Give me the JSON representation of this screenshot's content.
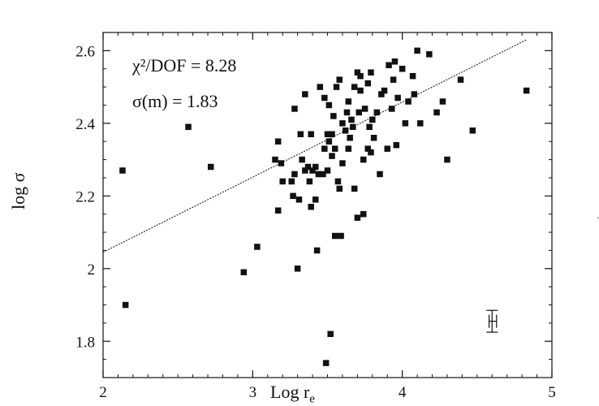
{
  "chart_data": {
    "type": "scatter",
    "xlabel": "Log r",
    "xlabel_sub": "e",
    "ylabel": "log σ",
    "xlim": [
      2,
      5
    ],
    "ylim": [
      1.7,
      2.65
    ],
    "x_ticks": [
      2,
      3,
      4,
      5
    ],
    "x_tick_labels": [
      "2",
      "3",
      "4",
      "5"
    ],
    "y_ticks": [
      1.8,
      2.0,
      2.2,
      2.4,
      2.6
    ],
    "y_tick_labels": [
      "1.8",
      "2",
      "2.2",
      "2.4",
      "2.6"
    ],
    "grid": false,
    "annotations": {
      "chi2": "χ²/DOF = 8.28",
      "sigma_m": "σ(m) = 1.83"
    },
    "fit_line": {
      "x": [
        2.0,
        4.83
      ],
      "y": [
        2.045,
        2.63
      ]
    },
    "error_bar": {
      "x": 4.6,
      "y": 1.855,
      "y_low": 1.825,
      "y_high": 1.885,
      "x_low": 4.58,
      "x_high": 4.63
    },
    "points": [
      {
        "x": 2.13,
        "y": 2.27
      },
      {
        "x": 2.15,
        "y": 1.9
      },
      {
        "x": 2.57,
        "y": 2.39
      },
      {
        "x": 2.72,
        "y": 2.28
      },
      {
        "x": 2.94,
        "y": 1.99
      },
      {
        "x": 3.03,
        "y": 2.06
      },
      {
        "x": 3.15,
        "y": 2.3
      },
      {
        "x": 3.17,
        "y": 2.16
      },
      {
        "x": 3.17,
        "y": 2.35
      },
      {
        "x": 3.19,
        "y": 2.29
      },
      {
        "x": 3.2,
        "y": 2.24
      },
      {
        "x": 3.26,
        "y": 2.24
      },
      {
        "x": 3.27,
        "y": 2.2
      },
      {
        "x": 3.28,
        "y": 2.26
      },
      {
        "x": 3.28,
        "y": 2.44
      },
      {
        "x": 3.3,
        "y": 2.0
      },
      {
        "x": 3.31,
        "y": 2.19
      },
      {
        "x": 3.32,
        "y": 2.37
      },
      {
        "x": 3.33,
        "y": 2.3
      },
      {
        "x": 3.35,
        "y": 2.27
      },
      {
        "x": 3.35,
        "y": 2.48
      },
      {
        "x": 3.37,
        "y": 2.28
      },
      {
        "x": 3.38,
        "y": 2.24
      },
      {
        "x": 3.39,
        "y": 2.17
      },
      {
        "x": 3.39,
        "y": 2.37
      },
      {
        "x": 3.4,
        "y": 2.27
      },
      {
        "x": 3.42,
        "y": 2.19
      },
      {
        "x": 3.42,
        "y": 2.28
      },
      {
        "x": 3.43,
        "y": 2.05
      },
      {
        "x": 3.44,
        "y": 2.26
      },
      {
        "x": 3.45,
        "y": 2.5
      },
      {
        "x": 3.47,
        "y": 2.26
      },
      {
        "x": 3.48,
        "y": 2.33
      },
      {
        "x": 3.48,
        "y": 2.47
      },
      {
        "x": 3.49,
        "y": 1.74
      },
      {
        "x": 3.5,
        "y": 2.27
      },
      {
        "x": 3.5,
        "y": 2.37
      },
      {
        "x": 3.51,
        "y": 2.35
      },
      {
        "x": 3.51,
        "y": 2.45
      },
      {
        "x": 3.52,
        "y": 1.82
      },
      {
        "x": 3.53,
        "y": 2.31
      },
      {
        "x": 3.53,
        "y": 2.37
      },
      {
        "x": 3.54,
        "y": 2.42
      },
      {
        "x": 3.55,
        "y": 2.09
      },
      {
        "x": 3.55,
        "y": 2.33
      },
      {
        "x": 3.56,
        "y": 2.5
      },
      {
        "x": 3.57,
        "y": 2.24
      },
      {
        "x": 3.58,
        "y": 2.22
      },
      {
        "x": 3.58,
        "y": 2.52
      },
      {
        "x": 3.59,
        "y": 2.09
      },
      {
        "x": 3.6,
        "y": 2.29
      },
      {
        "x": 3.6,
        "y": 2.4
      },
      {
        "x": 3.62,
        "y": 2.38
      },
      {
        "x": 3.63,
        "y": 2.43
      },
      {
        "x": 3.64,
        "y": 2.33
      },
      {
        "x": 3.64,
        "y": 2.46
      },
      {
        "x": 3.65,
        "y": 2.36
      },
      {
        "x": 3.66,
        "y": 2.41
      },
      {
        "x": 3.67,
        "y": 2.39
      },
      {
        "x": 3.68,
        "y": 2.22
      },
      {
        "x": 3.68,
        "y": 2.5
      },
      {
        "x": 3.7,
        "y": 2.14
      },
      {
        "x": 3.7,
        "y": 2.54
      },
      {
        "x": 3.71,
        "y": 2.43
      },
      {
        "x": 3.72,
        "y": 2.49
      },
      {
        "x": 3.72,
        "y": 2.53
      },
      {
        "x": 3.74,
        "y": 2.15
      },
      {
        "x": 3.74,
        "y": 2.3
      },
      {
        "x": 3.75,
        "y": 2.44
      },
      {
        "x": 3.77,
        "y": 2.33
      },
      {
        "x": 3.77,
        "y": 2.51
      },
      {
        "x": 3.78,
        "y": 2.39
      },
      {
        "x": 3.79,
        "y": 2.32
      },
      {
        "x": 3.79,
        "y": 2.54
      },
      {
        "x": 3.8,
        "y": 2.41
      },
      {
        "x": 3.81,
        "y": 2.36
      },
      {
        "x": 3.83,
        "y": 2.43
      },
      {
        "x": 3.85,
        "y": 2.26
      },
      {
        "x": 3.86,
        "y": 2.48
      },
      {
        "x": 3.88,
        "y": 2.49
      },
      {
        "x": 3.9,
        "y": 2.33
      },
      {
        "x": 3.91,
        "y": 2.56
      },
      {
        "x": 3.93,
        "y": 2.44
      },
      {
        "x": 3.94,
        "y": 2.52
      },
      {
        "x": 3.95,
        "y": 2.57
      },
      {
        "x": 3.96,
        "y": 2.34
      },
      {
        "x": 3.97,
        "y": 2.47
      },
      {
        "x": 4.0,
        "y": 2.55
      },
      {
        "x": 4.02,
        "y": 2.4
      },
      {
        "x": 4.04,
        "y": 2.46
      },
      {
        "x": 4.07,
        "y": 2.53
      },
      {
        "x": 4.08,
        "y": 2.48
      },
      {
        "x": 4.1,
        "y": 2.6
      },
      {
        "x": 4.12,
        "y": 2.4
      },
      {
        "x": 4.18,
        "y": 2.59
      },
      {
        "x": 4.23,
        "y": 2.43
      },
      {
        "x": 4.27,
        "y": 2.46
      },
      {
        "x": 4.3,
        "y": 2.3
      },
      {
        "x": 4.39,
        "y": 2.52
      },
      {
        "x": 4.47,
        "y": 2.38
      },
      {
        "x": 4.83,
        "y": 2.49
      }
    ]
  }
}
